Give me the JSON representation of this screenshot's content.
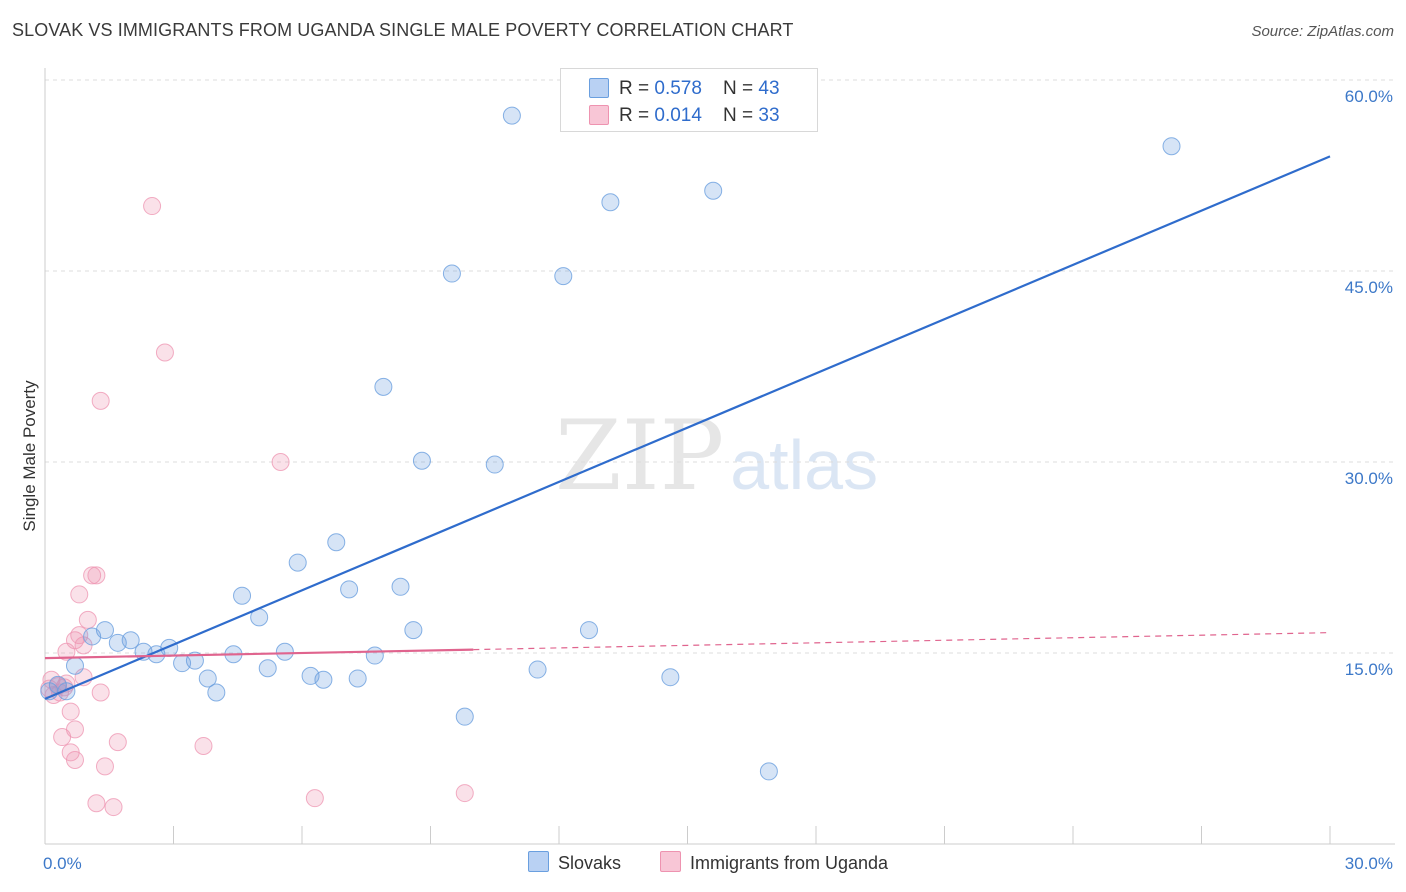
{
  "title": "SLOVAK VS IMMIGRANTS FROM UGANDA SINGLE MALE POVERTY CORRELATION CHART",
  "source": "Source: ZipAtlas.com",
  "watermark": {
    "zip": "ZIP",
    "atlas": "atlas"
  },
  "legend": {
    "r_label": "R = ",
    "n_label": "N = ",
    "series1": {
      "r": "0.578",
      "n": "43"
    },
    "series2": {
      "r": "0.014",
      "n": "33"
    }
  },
  "bottom_legend": {
    "s1": "Slovaks",
    "s2": "Immigrants from Uganda"
  },
  "chart_data": {
    "type": "scatter",
    "title": "SLOVAK VS IMMIGRANTS FROM UGANDA SINGLE MALE POVERTY CORRELATION CHART",
    "xlabel": "",
    "ylabel": "Single Male Poverty",
    "xlim": [
      0,
      30
    ],
    "ylim": [
      0,
      60
    ],
    "x_tick_labels": [
      "0.0%",
      "30.0%"
    ],
    "y_ticks": [
      15,
      30,
      45,
      60
    ],
    "y_tick_labels": [
      "15.0%",
      "30.0%",
      "45.0%",
      "60.0%"
    ],
    "colors": {
      "slovaks": "#6a9fdf",
      "uganda": "#ee93b0",
      "slovaks_line": "#2f6ccc",
      "uganda_line": "#e0648e",
      "tick_label": "#3c78c8"
    },
    "series": [
      {
        "name": "Slovaks",
        "points": [
          [
            0.1,
            12.0
          ],
          [
            0.3,
            12.5
          ],
          [
            0.5,
            12.0
          ],
          [
            0.7,
            14.0
          ],
          [
            1.1,
            16.3
          ],
          [
            1.4,
            16.8
          ],
          [
            1.7,
            15.8
          ],
          [
            2.0,
            16.0
          ],
          [
            2.3,
            15.1
          ],
          [
            2.6,
            14.9
          ],
          [
            2.9,
            15.4
          ],
          [
            3.2,
            14.2
          ],
          [
            3.5,
            14.4
          ],
          [
            3.8,
            13.0
          ],
          [
            4.0,
            11.9
          ],
          [
            4.4,
            14.9
          ],
          [
            4.6,
            19.5
          ],
          [
            5.0,
            17.8
          ],
          [
            5.2,
            13.8
          ],
          [
            5.6,
            15.1
          ],
          [
            5.9,
            22.1
          ],
          [
            6.2,
            13.2
          ],
          [
            6.5,
            12.9
          ],
          [
            6.8,
            23.7
          ],
          [
            7.1,
            20.0
          ],
          [
            7.3,
            13.0
          ],
          [
            7.7,
            14.8
          ],
          [
            7.9,
            35.9
          ],
          [
            8.3,
            20.2
          ],
          [
            8.6,
            16.8
          ],
          [
            8.8,
            30.1
          ],
          [
            9.5,
            44.8
          ],
          [
            9.8,
            10.0
          ],
          [
            10.5,
            29.8
          ],
          [
            10.9,
            57.2
          ],
          [
            11.5,
            13.7
          ],
          [
            12.1,
            44.6
          ],
          [
            12.7,
            16.8
          ],
          [
            13.2,
            50.4
          ],
          [
            14.6,
            13.1
          ],
          [
            15.6,
            51.3
          ],
          [
            16.9,
            5.7
          ],
          [
            26.3,
            54.8
          ]
        ]
      },
      {
        "name": "Immigrants from Uganda",
        "points": [
          [
            0.1,
            12.2
          ],
          [
            0.2,
            11.7
          ],
          [
            0.3,
            12.4
          ],
          [
            0.4,
            8.4
          ],
          [
            0.5,
            15.1
          ],
          [
            0.5,
            12.6
          ],
          [
            0.6,
            10.4
          ],
          [
            0.6,
            7.2
          ],
          [
            0.7,
            16.0
          ],
          [
            0.7,
            6.6
          ],
          [
            0.7,
            9.0
          ],
          [
            0.8,
            16.4
          ],
          [
            0.8,
            19.6
          ],
          [
            0.9,
            13.1
          ],
          [
            0.9,
            15.6
          ],
          [
            1.0,
            17.6
          ],
          [
            1.1,
            21.1
          ],
          [
            1.2,
            21.1
          ],
          [
            1.2,
            3.2
          ],
          [
            1.3,
            34.8
          ],
          [
            1.3,
            11.9
          ],
          [
            1.4,
            6.1
          ],
          [
            1.6,
            2.9
          ],
          [
            1.7,
            8.0
          ],
          [
            2.5,
            50.1
          ],
          [
            2.8,
            38.6
          ],
          [
            3.7,
            7.7
          ],
          [
            5.5,
            30.0
          ],
          [
            6.3,
            3.6
          ],
          [
            9.8,
            4.0
          ],
          [
            0.15,
            12.9
          ],
          [
            0.35,
            11.9
          ],
          [
            0.45,
            12.3
          ]
        ]
      }
    ],
    "trendlines": [
      {
        "name": "Slovaks",
        "x": [
          0,
          30
        ],
        "y": [
          11.4,
          54.0
        ]
      },
      {
        "name": "Immigrants from Uganda",
        "x": [
          0,
          30
        ],
        "y": [
          14.6,
          16.6
        ],
        "solid_until_x": 10
      }
    ]
  }
}
